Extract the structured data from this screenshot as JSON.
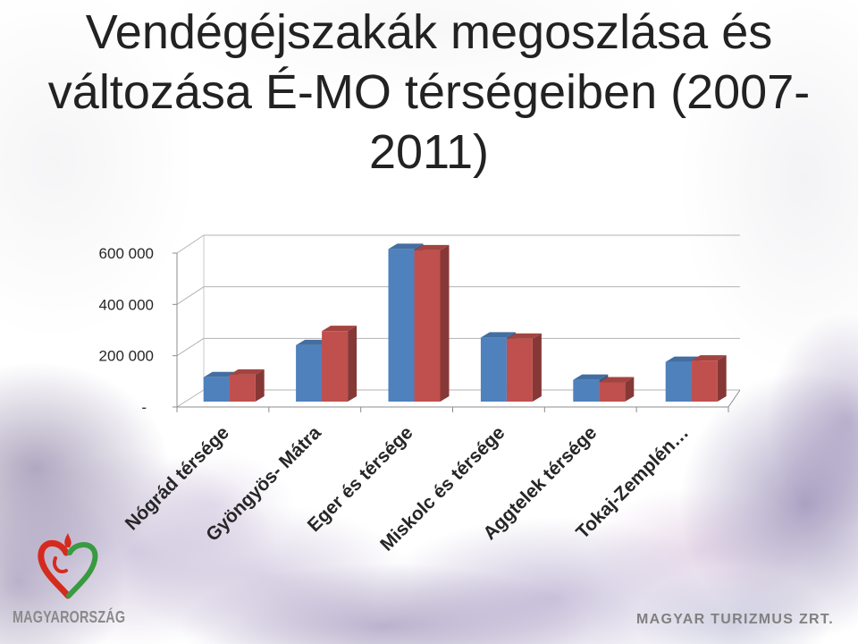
{
  "slide": {
    "title_lines": [
      "Vendégéjszakák megoszlása és",
      "változása É-MO térségeiben (2007-",
      "2011)"
    ]
  },
  "chart_data": {
    "type": "bar",
    "three_d": true,
    "categories": [
      "Nógrád térsége",
      "Gyöngyös- Mátra",
      "Eger és térsége",
      "Miskolc és térsége",
      "Aggtelek térsége",
      "Tokaj-Zemplén…"
    ],
    "series": [
      {
        "values": [
          95000,
          220000,
          595000,
          250000,
          85000,
          155000
        ],
        "color": "#4f81bd"
      },
      {
        "values": [
          105000,
          275000,
          590000,
          245000,
          75000,
          160000
        ],
        "color": "#c0504d"
      }
    ],
    "ylim": [
      0,
      600000
    ],
    "yticks": [
      0,
      200000,
      400000,
      600000
    ],
    "ytick_labels": [
      "-",
      "200 000",
      "400 000",
      "600 000"
    ],
    "grid": true,
    "show_legend": false
  },
  "branding": {
    "left_logo_icon": "heart-logo-icon",
    "left_logo_text": "MAGYARORSZÁG",
    "right_logo_text": "MAGYAR TURIZMUS ZRT.",
    "colors": {
      "logo_red": "#d52b1e",
      "logo_green": "#3a9a42"
    }
  }
}
